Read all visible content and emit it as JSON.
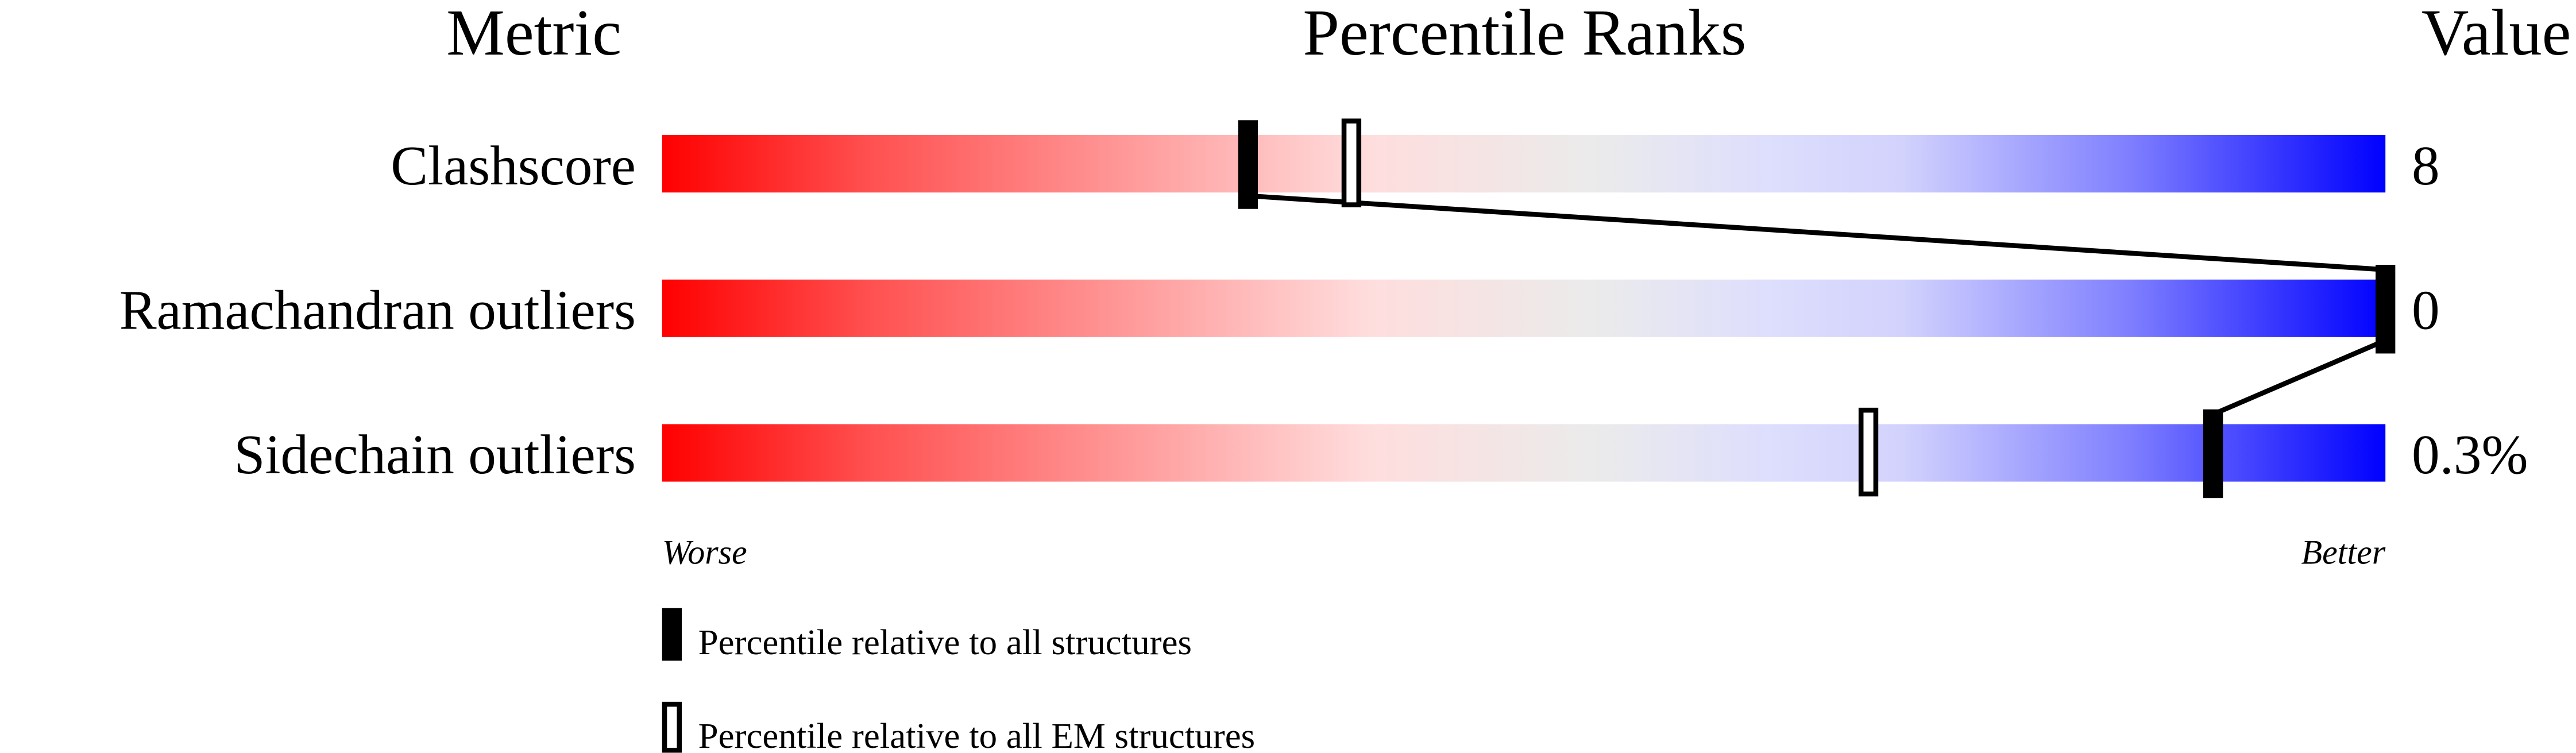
{
  "chart_data": {
    "type": "percentile-bar",
    "headers": {
      "metric": "Metric",
      "ranks": "Percentile Ranks",
      "value": "Value"
    },
    "xlim": [
      0,
      100
    ],
    "axis_labels": {
      "left": "Worse",
      "right": "Better"
    },
    "rows": [
      {
        "metric": "Clashscore",
        "value": "8",
        "percentile_all": 34,
        "percentile_em": 40
      },
      {
        "metric": "Ramachandran outliers",
        "value": "0",
        "percentile_all": 100,
        "percentile_em": null
      },
      {
        "metric": "Sidechain outliers",
        "value": "0.3%",
        "percentile_all": 90,
        "percentile_em": 70
      }
    ],
    "legend": [
      {
        "marker": "filled",
        "label": "Percentile relative to all structures"
      },
      {
        "marker": "open",
        "label": "Percentile relative to all EM structures"
      }
    ],
    "colors": {
      "worse": "#ff0000",
      "middle": "#ececec",
      "better": "#0000ff",
      "marker": "#000000"
    }
  }
}
